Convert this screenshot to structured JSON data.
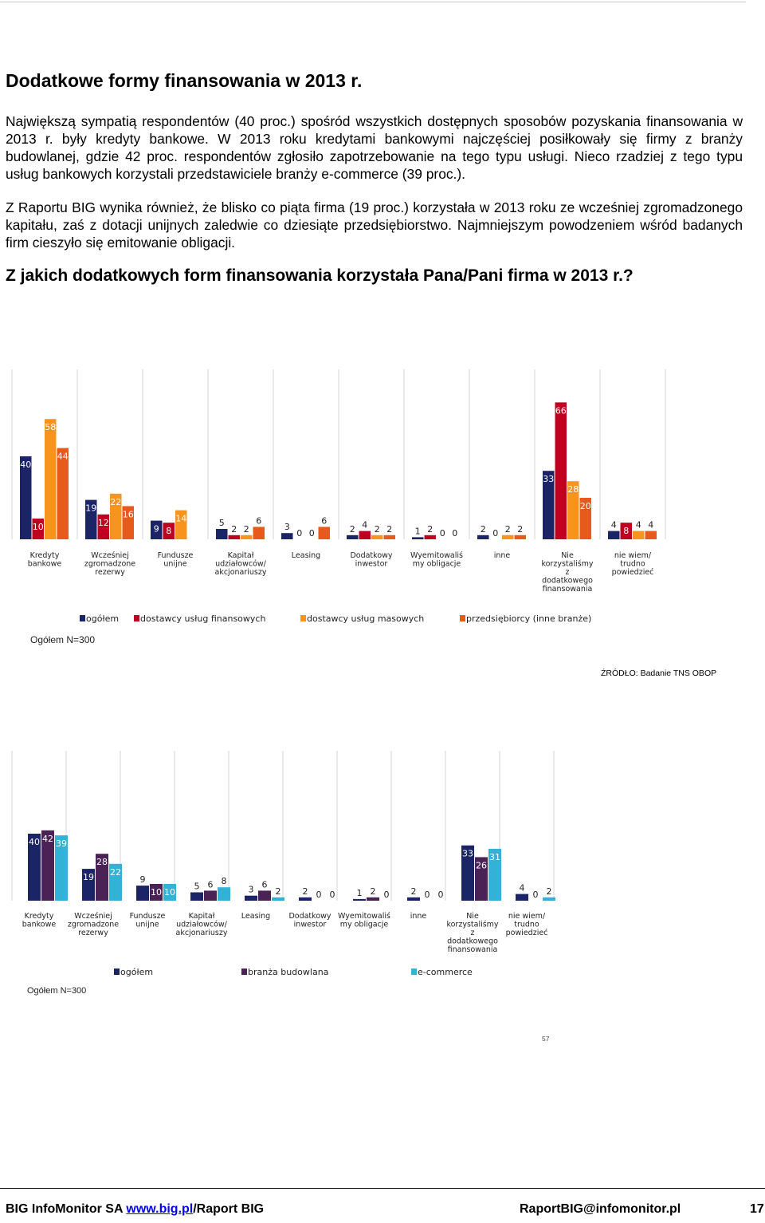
{
  "heading": "Dodatkowe formy finansowania w 2013 r.",
  "paragraph1": "Największą sympatią respondentów (40 proc.) spośród wszystkich dostępnych sposobów pozyskania finansowania w 2013 r. były kredyty bankowe. W 2013 roku kredytami bankowymi najczęściej posiłkowały się firmy z branży budowlanej, gdzie 42 proc. respondentów zgłosiło zapotrzebowanie na tego typu usługi. Nieco rzadziej z tego typu usług bankowych korzystali przedstawiciele branży e-commerce (39 proc.).",
  "paragraph2": "Z Raportu BIG wynika również, że blisko co piąta firma (19 proc.) korzystała w 2013 roku ze wcześniej zgromadzonego kapitału, zaś z dotacji unijnych zaledwie co dziesiąte przedsiębiorstwo. Najmniejszym powodzeniem wśród badanych firm cieszyło się emitowanie obligacji.",
  "question": "Z jakich dodatkowych form finansowania korzystała Pana/Pani firma w 2013 r.?",
  "chart_data": [
    {
      "type": "bar",
      "categories": [
        [
          "Kredyty",
          "bankowe"
        ],
        [
          "Wcześniej",
          "zgromadzone",
          "rezerwy"
        ],
        [
          "Fundusze",
          "unijne"
        ],
        [
          "Kapitał",
          "udziałowców/",
          "akcjonariuszy"
        ],
        [
          "Leasing"
        ],
        [
          "Dodatkowy",
          "inwestor"
        ],
        [
          "Wyemitowaliś",
          "my obligacje"
        ],
        [
          "inne"
        ],
        [
          "Nie",
          "korzystaliśmy",
          "z",
          "dodatkowego",
          "finansowania"
        ],
        [
          "nie wiem/",
          "trudno",
          "powiedzieć"
        ]
      ],
      "series": [
        {
          "name": "ogółem",
          "color": "#1b2466",
          "values": [
            40,
            19,
            9,
            5,
            3,
            2,
            1,
            2,
            33,
            4
          ]
        },
        {
          "name": "dostawcy usług finansowych",
          "color": "#c00020",
          "values": [
            10,
            12,
            8,
            2,
            0,
            4,
            2,
            0,
            66,
            8
          ]
        },
        {
          "name": "dostawcy usług masowych",
          "color": "#f7941d",
          "values": [
            58,
            22,
            14,
            2,
            0,
            2,
            0,
            2,
            28,
            4
          ]
        },
        {
          "name": "przedsiębiorcy (inne branże)",
          "color": "#e85a1b",
          "values": [
            44,
            16,
            null,
            6,
            6,
            2,
            0,
            2,
            20,
            4
          ]
        }
      ],
      "base_label": "Ogółem N=300",
      "source": "ŹRÓDŁO: Badanie TNS OBOP"
    },
    {
      "type": "bar",
      "categories": [
        [
          "Kredyty",
          "bankowe"
        ],
        [
          "Wcześniej",
          "zgromadzone",
          "rezerwy"
        ],
        [
          "Fundusze",
          "unijne"
        ],
        [
          "Kapitał",
          "udziałowców/",
          "akcjonariuszy"
        ],
        [
          "Leasing"
        ],
        [
          "Dodatkowy",
          "inwestor"
        ],
        [
          "Wyemitowaliś",
          "my obligacje"
        ],
        [
          "inne"
        ],
        [
          "Nie",
          "korzystaliśmy",
          "z",
          "dodatkowego",
          "finansowania"
        ],
        [
          "nie wiem/",
          "trudno",
          "powiedzieć"
        ]
      ],
      "series": [
        {
          "name": "ogółem",
          "color": "#1b2466",
          "values": [
            40,
            19,
            9,
            5,
            3,
            2,
            1,
            2,
            33,
            4
          ]
        },
        {
          "name": "branża budowlana",
          "color": "#4a2255",
          "values": [
            42,
            28,
            10,
            6,
            6,
            0,
            2,
            0,
            26,
            0
          ]
        },
        {
          "name": "e-commerce",
          "color": "#33b1d6",
          "values": [
            39,
            22,
            10,
            8,
            2,
            0,
            0,
            0,
            31,
            2
          ]
        }
      ],
      "base_label": "Ogółem N=300"
    }
  ],
  "page_number_small": "57",
  "footer": {
    "company": "BIG InfoMonitor SA ",
    "link": "www.big.pl",
    "after_link": "/Raport BIG",
    "email": "RaportBIG@infomonitor.pl",
    "page": "17"
  }
}
